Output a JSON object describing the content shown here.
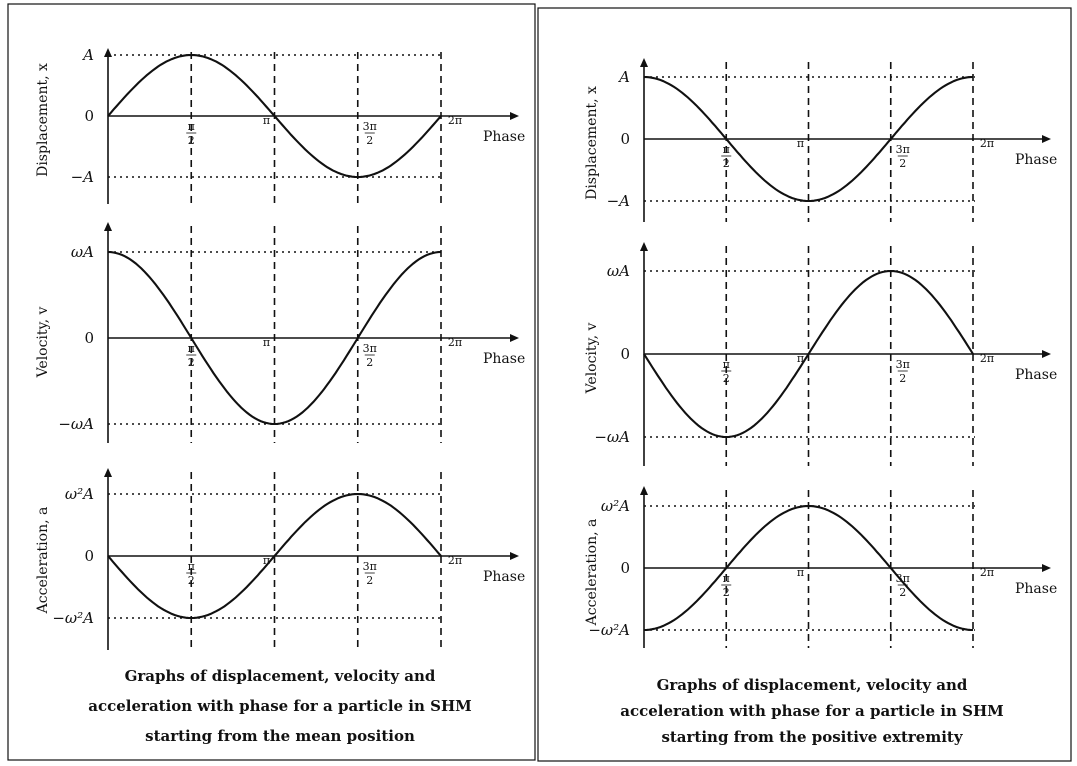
{
  "chart_data": [
    {
      "type": "line",
      "panel": "mean-position",
      "caption": [
        "Graphs of displacement, velocity and",
        "acceleration with phase for a particle in SHM",
        "starting from the mean position"
      ],
      "phase_ticks": [
        "π/2",
        "π",
        "3π/2",
        "2π"
      ],
      "xlabel": "Phase",
      "subplots": [
        {
          "ylabel": "Displacement, x",
          "ymax_label": "A",
          "zero_label": "0",
          "ymin_label": "−A",
          "series": {
            "x": [
              0,
              0.785,
              1.571,
              2.356,
              3.142,
              3.927,
              4.712,
              5.498,
              6.283
            ],
            "y": [
              0,
              0.71,
              1,
              0.71,
              0,
              -0.71,
              -1,
              -0.71,
              0
            ]
          }
        },
        {
          "ylabel": "Velocity, v",
          "ymax_label": "ωA",
          "zero_label": "0",
          "ymin_label": "−ωA",
          "series": {
            "x": [
              0,
              0.785,
              1.571,
              2.356,
              3.142,
              3.927,
              4.712,
              5.498,
              6.283
            ],
            "y": [
              1,
              0.71,
              0,
              -0.71,
              -1,
              -0.71,
              0,
              0.71,
              1
            ]
          }
        },
        {
          "ylabel": "Acceleration, a",
          "ymax_label": "ω²A",
          "zero_label": "0",
          "ymin_label": "−ω²A",
          "series": {
            "x": [
              0,
              0.785,
              1.571,
              2.356,
              3.142,
              3.927,
              4.712,
              5.498,
              6.283
            ],
            "y": [
              0,
              -0.71,
              -1,
              -0.71,
              0,
              0.71,
              1,
              0.71,
              0
            ]
          }
        }
      ]
    },
    {
      "type": "line",
      "panel": "positive-extremity",
      "caption": [
        "Graphs of displacement, velocity and",
        "acceleration with phase for a particle in SHM",
        "starting from the positive extremity"
      ],
      "phase_ticks": [
        "π/2",
        "π",
        "3π/2",
        "2π"
      ],
      "xlabel": "Phase",
      "subplots": [
        {
          "ylabel": "Displacement, x",
          "ymax_label": "A",
          "zero_label": "0",
          "ymin_label": "−A",
          "series": {
            "x": [
              0,
              0.785,
              1.571,
              2.356,
              3.142,
              3.927,
              4.712,
              5.498,
              6.283
            ],
            "y": [
              1,
              0.71,
              0,
              -0.71,
              -1,
              -0.71,
              0,
              0.71,
              1
            ]
          }
        },
        {
          "ylabel": "Velocity, v",
          "ymax_label": "ωA",
          "zero_label": "0",
          "ymin_label": "−ωA",
          "series": {
            "x": [
              0,
              0.785,
              1.571,
              2.356,
              3.142,
              3.927,
              4.712,
              5.498,
              6.283
            ],
            "y": [
              0,
              -0.71,
              -1,
              -0.71,
              0,
              0.71,
              1,
              0.71,
              0
            ]
          }
        },
        {
          "ylabel": "Acceleration, a",
          "ymax_label": "ω²A",
          "zero_label": "0",
          "ymin_label": "−ω²A",
          "series": {
            "x": [
              0,
              0.785,
              1.571,
              2.356,
              3.142,
              3.927,
              4.712,
              5.498,
              6.283
            ],
            "y": [
              -1,
              -0.71,
              0,
              0.71,
              1,
              0.71,
              0,
              -0.71,
              -1
            ]
          }
        }
      ]
    }
  ]
}
